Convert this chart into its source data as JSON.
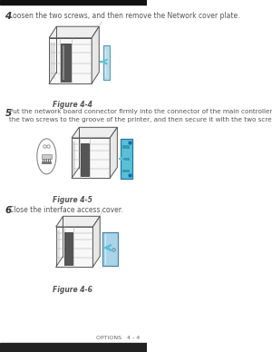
{
  "bg_color": "#ffffff",
  "page_border_color": "#cccccc",
  "text_color": "#555555",
  "step_num_color": "#333333",
  "step4_num": "4",
  "step4_text": "Loosen the two screws, and then remove the Network cover plate.",
  "fig4_label": "Figure 4-4",
  "step5_num": "5",
  "step5_line1": "Put the network board connector firmly into the connector of the main controller board by aligning",
  "step5_line2": "the two screws to the groove of the printer, and then secure it with the two screws.",
  "fig5_label": "Figure 4-5",
  "step6_num": "6",
  "step6_text": "Close the interface access cover.",
  "fig6_label": "Figure 4-6",
  "footer_text": "OPTIONS   4 - 4",
  "arrow_color": "#5bbfd6",
  "body_line_color": "#aaaaaa",
  "body_edge_color": "#888888",
  "dark_line_color": "#555555",
  "plate_face_color": "#b8dde8",
  "plate_edge_color": "#5599bb",
  "board_face_color": "#5bbfd6",
  "board_edge_color": "#2277aa",
  "cover_face_color": "#aad4e8",
  "cover_edge_color": "#4488aa"
}
